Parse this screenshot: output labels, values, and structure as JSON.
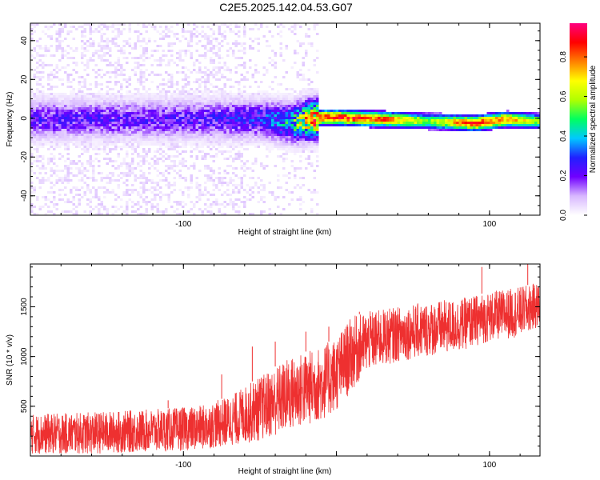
{
  "figure": {
    "title": "C2E5.2025.142.04.53.G07"
  },
  "chart_data": [
    {
      "type": "heatmap",
      "title": "C2E5.2025.142.04.53.G07",
      "xlabel": "Height of straight line (km)",
      "ylabel": "Frequency (Hz)",
      "xlim": [
        -200,
        133
      ],
      "ylim": [
        -50,
        49
      ],
      "xticks": [
        -100,
        0,
        100
      ],
      "xtick_labels": [
        "-100",
        "",
        "100"
      ],
      "yticks": [
        -40,
        -20,
        0,
        20,
        40
      ],
      "ytick_labels": [
        "-40",
        "-20",
        "0",
        "20",
        "40"
      ],
      "colorbar": {
        "label": "Normalized spectral amplitude",
        "range": [
          0,
          0.97
        ],
        "ticks": [
          0.0,
          0.2,
          0.4,
          0.6,
          0.8
        ],
        "tick_labels": [
          "0.0",
          "0.2",
          "0.4",
          "0.6",
          "0.8"
        ],
        "colormap": [
          "#ffffff",
          "#d8b8ff",
          "#7000ff",
          "#2020ff",
          "#00c8ff",
          "#00ff60",
          "#b0ff00",
          "#ffff00",
          "#ff8000",
          "#ff0000",
          "#ff0080"
        ]
      },
      "ridge": {
        "description_x": [
          -200,
          -100,
          -50,
          -30,
          -10,
          0,
          30,
          60,
          90,
          110,
          133
        ],
        "center_frequency": [
          0,
          0,
          0,
          -2,
          1,
          1,
          0,
          -1,
          -2,
          0,
          -1
        ],
        "peak_amplitude": [
          0.2,
          0.2,
          0.25,
          0.4,
          0.9,
          0.9,
          0.85,
          0.6,
          0.9,
          0.8,
          0.6
        ]
      },
      "grid": false
    },
    {
      "type": "line",
      "xlabel": "Height of straight line (km)",
      "ylabel": "SNR (10 * v/v)",
      "xlim": [
        -200,
        133
      ],
      "ylim": [
        0,
        1930
      ],
      "xticks": [
        -100,
        0,
        100
      ],
      "xtick_labels": [
        "-100",
        "",
        "100"
      ],
      "yticks": [
        500,
        1000,
        1500
      ],
      "ytick_labels": [
        "500",
        "1000",
        "1500"
      ],
      "series": [
        {
          "color": "#ee3030",
          "envelope_x": [
            -200,
            -160,
            -120,
            -90,
            -70,
            -50,
            -30,
            -10,
            0,
            10,
            20,
            40,
            60,
            80,
            100,
            120,
            133
          ],
          "envelope_low": [
            20,
            20,
            40,
            60,
            100,
            150,
            250,
            350,
            450,
            650,
            850,
            950,
            1000,
            1050,
            1150,
            1200,
            1300
          ],
          "envelope_high": [
            420,
            440,
            470,
            500,
            600,
            800,
            1000,
            1100,
            1200,
            1400,
            1450,
            1500,
            1550,
            1580,
            1650,
            1700,
            1750
          ],
          "peaks": [
            [
              -110,
              560
            ],
            [
              -75,
              820
            ],
            [
              -55,
              1100
            ],
            [
              -40,
              1150
            ],
            [
              -20,
              1250
            ],
            [
              -5,
              1300
            ],
            [
              15,
              1450
            ],
            [
              95,
              1900
            ],
            [
              125,
              1930
            ]
          ]
        }
      ],
      "grid": false
    }
  ]
}
